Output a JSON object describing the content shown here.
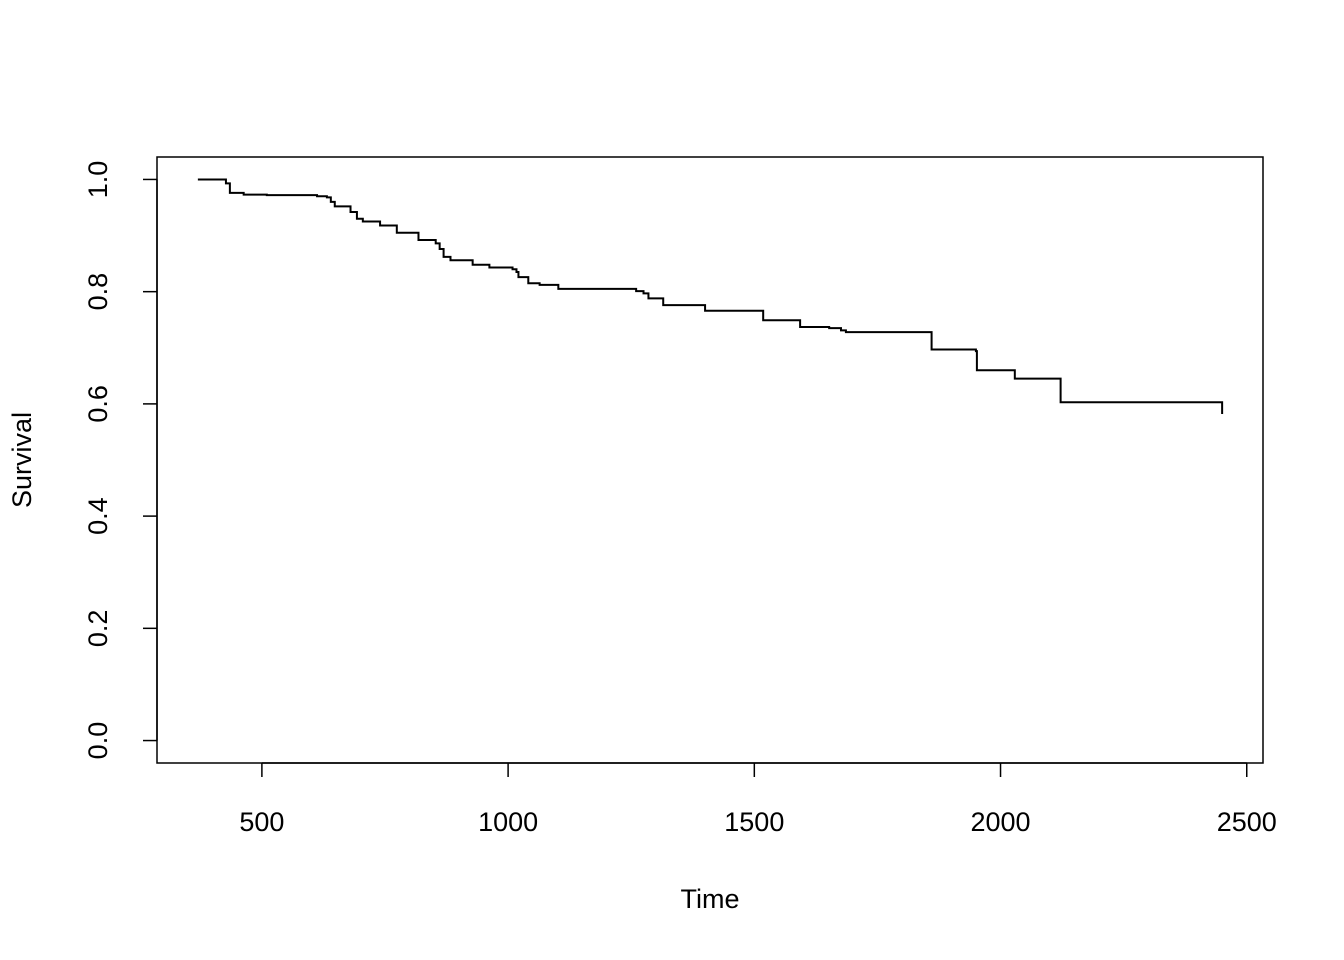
{
  "chart_data": {
    "type": "step",
    "xlabel": "Time",
    "ylabel": "Survival",
    "x": [
      370,
      427,
      435,
      463,
      510,
      612,
      632,
      640,
      648,
      680,
      693,
      705,
      740,
      774,
      818,
      853,
      861,
      869,
      883,
      928,
      962,
      1009,
      1017,
      1021,
      1041,
      1064,
      1102,
      1260,
      1275,
      1285,
      1315,
      1400,
      1518,
      1593,
      1652,
      1676,
      1686,
      1860,
      1950,
      1952,
      2029,
      2122,
      2450
    ],
    "values": [
      1.0,
      0.993,
      0.976,
      0.973,
      0.972,
      0.97,
      0.968,
      0.96,
      0.952,
      0.942,
      0.93,
      0.925,
      0.918,
      0.905,
      0.892,
      0.886,
      0.876,
      0.862,
      0.856,
      0.848,
      0.843,
      0.84,
      0.835,
      0.826,
      0.815,
      0.812,
      0.805,
      0.801,
      0.797,
      0.788,
      0.776,
      0.766,
      0.749,
      0.737,
      0.735,
      0.731,
      0.728,
      0.697,
      0.694,
      0.66,
      0.645,
      0.603,
      0.582
    ],
    "color": "#000000",
    "xlim": [
      287,
      2533
    ],
    "ylim": [
      -0.04,
      1.04
    ],
    "xticks": [
      500,
      1000,
      1500,
      2000,
      2500
    ],
    "yticks": [
      {
        "value": 0,
        "label": "0.0"
      },
      0.2,
      0.4,
      0.6,
      0.8,
      {
        "value": 1,
        "label": "1.0"
      }
    ]
  }
}
